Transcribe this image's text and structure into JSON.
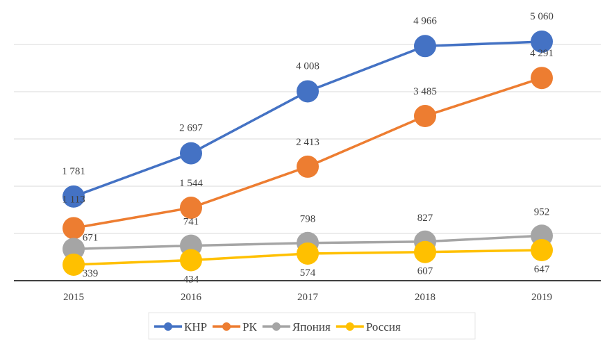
{
  "chart_data": {
    "type": "line",
    "title": "",
    "xlabel": "",
    "ylabel": "",
    "categories": [
      "2015",
      "2016",
      "2017",
      "2018",
      "2019"
    ],
    "ylim": [
      0,
      5000
    ],
    "grid": true,
    "legend_position": "bottom",
    "series": [
      {
        "name": "КНР",
        "color": "#4472C4",
        "values": [
          1781,
          2697,
          4008,
          4966,
          5060
        ],
        "labels": [
          "1 781",
          "2 697",
          "4 008",
          "4 966",
          "5 060"
        ],
        "label_pos": "above"
      },
      {
        "name": "РК",
        "color": "#ED7D31",
        "values": [
          1113,
          1544,
          2413,
          3485,
          4291
        ],
        "labels": [
          "1 113",
          "1 544",
          "2 413",
          "3 485",
          "4 291"
        ],
        "label_pos": "above"
      },
      {
        "name": "Япония",
        "color": "#A5A5A5",
        "values": [
          671,
          741,
          798,
          827,
          952
        ],
        "labels": [
          "671",
          "741",
          "798",
          "827",
          "952"
        ],
        "label_pos": "above"
      },
      {
        "name": "Россия",
        "color": "#FFC000",
        "values": [
          339,
          434,
          574,
          607,
          647
        ],
        "labels": [
          "339",
          "434",
          "574",
          "607",
          "647"
        ],
        "label_pos": "below"
      }
    ]
  }
}
